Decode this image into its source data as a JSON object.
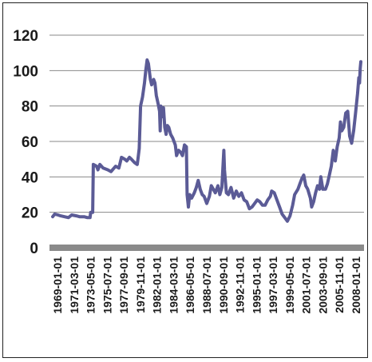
{
  "chart_data": {
    "type": "line",
    "title": "",
    "xlabel": "",
    "ylabel": "",
    "ylim": [
      0,
      120
    ],
    "y_ticks": [
      0,
      20,
      40,
      60,
      80,
      100,
      120
    ],
    "grid": true,
    "legend": "none",
    "x_tick_labels": [
      "1969-01-01",
      "1971-03-01",
      "1973-05-01",
      "1975-07-01",
      "1977-09-01",
      "1979-11-01",
      "1982-01-01",
      "1984-03-01",
      "1986-05-01",
      "1988-07-01",
      "1990-09-01",
      "1992-11-01",
      "1995-01-01",
      "1997-03-01",
      "1999-05-01",
      "2001-07-01",
      "2003-09-01",
      "2005-11-01",
      "2008-01-01"
    ],
    "series": [
      {
        "color": "#5b5b96",
        "points": [
          [
            "1969-01-01",
            17.5
          ],
          [
            "1969-04-01",
            19
          ],
          [
            "1969-09-01",
            18.5
          ],
          [
            "1970-01-01",
            18
          ],
          [
            "1970-07-01",
            17.5
          ],
          [
            "1971-01-01",
            17
          ],
          [
            "1971-06-01",
            18.5
          ],
          [
            "1972-01-01",
            18
          ],
          [
            "1972-06-01",
            17.5
          ],
          [
            "1973-01-01",
            17.5
          ],
          [
            "1973-06-01",
            17
          ],
          [
            "1973-10-01",
            17
          ],
          [
            "1973-11-01",
            20
          ],
          [
            "1974-02-01",
            20
          ],
          [
            "1974-03-01",
            47
          ],
          [
            "1974-08-01",
            46
          ],
          [
            "1974-10-01",
            44
          ],
          [
            "1975-01-01",
            47
          ],
          [
            "1975-06-01",
            45
          ],
          [
            "1976-01-01",
            44
          ],
          [
            "1976-06-01",
            43
          ],
          [
            "1977-01-01",
            46
          ],
          [
            "1977-06-01",
            45
          ],
          [
            "1977-10-01",
            51
          ],
          [
            "1978-03-01",
            50
          ],
          [
            "1978-06-01",
            49
          ],
          [
            "1978-10-01",
            51
          ],
          [
            "1979-01-01",
            50
          ],
          [
            "1979-06-01",
            48
          ],
          [
            "1979-10-01",
            47
          ],
          [
            "1979-11-01",
            50
          ],
          [
            "1980-01-01",
            56
          ],
          [
            "1980-03-01",
            80
          ],
          [
            "1980-06-01",
            85
          ],
          [
            "1980-09-01",
            93
          ],
          [
            "1980-11-01",
            100
          ],
          [
            "1981-01-01",
            106
          ],
          [
            "1981-03-01",
            104
          ],
          [
            "1981-06-01",
            95
          ],
          [
            "1981-08-01",
            92
          ],
          [
            "1981-11-01",
            95
          ],
          [
            "1982-01-01",
            93
          ],
          [
            "1982-03-01",
            86
          ],
          [
            "1982-06-01",
            81
          ],
          [
            "1982-08-01",
            77
          ],
          [
            "1982-09-01",
            66
          ],
          [
            "1982-10-01",
            80
          ],
          [
            "1982-12-01",
            74
          ],
          [
            "1983-02-01",
            79
          ],
          [
            "1983-04-01",
            68
          ],
          [
            "1983-06-01",
            64
          ],
          [
            "1983-08-01",
            69
          ],
          [
            "1983-10-01",
            68
          ],
          [
            "1984-01-01",
            64
          ],
          [
            "1984-04-01",
            62
          ],
          [
            "1984-08-01",
            58
          ],
          [
            "1984-10-01",
            52
          ],
          [
            "1985-01-01",
            55
          ],
          [
            "1985-04-01",
            54
          ],
          [
            "1985-07-01",
            52
          ],
          [
            "1985-10-01",
            58
          ],
          [
            "1986-01-01",
            57
          ],
          [
            "1986-02-01",
            30
          ],
          [
            "1986-04-01",
            23
          ],
          [
            "1986-06-01",
            30
          ],
          [
            "1986-09-01",
            28
          ],
          [
            "1987-01-01",
            31
          ],
          [
            "1987-04-01",
            34
          ],
          [
            "1987-07-01",
            38
          ],
          [
            "1987-10-01",
            33
          ],
          [
            "1988-01-01",
            30
          ],
          [
            "1988-04-01",
            29
          ],
          [
            "1988-08-01",
            25
          ],
          [
            "1988-12-01",
            29
          ],
          [
            "1989-03-01",
            35
          ],
          [
            "1989-06-01",
            33
          ],
          [
            "1989-09-01",
            31
          ],
          [
            "1990-01-01",
            35
          ],
          [
            "1990-04-01",
            30
          ],
          [
            "1990-07-01",
            34
          ],
          [
            "1990-10-01",
            55
          ],
          [
            "1990-11-01",
            44
          ],
          [
            "1991-02-01",
            31
          ],
          [
            "1991-05-01",
            30
          ],
          [
            "1991-09-01",
            34
          ],
          [
            "1992-01-01",
            28
          ],
          [
            "1992-05-01",
            32
          ],
          [
            "1992-09-01",
            29
          ],
          [
            "1993-01-01",
            31
          ],
          [
            "1993-05-01",
            27
          ],
          [
            "1993-09-01",
            26
          ],
          [
            "1994-01-01",
            22
          ],
          [
            "1994-05-01",
            23
          ],
          [
            "1994-09-01",
            25
          ],
          [
            "1995-01-01",
            27
          ],
          [
            "1995-05-01",
            26
          ],
          [
            "1995-09-01",
            24
          ],
          [
            "1996-01-01",
            24
          ],
          [
            "1996-05-01",
            27
          ],
          [
            "1996-09-01",
            29
          ],
          [
            "1996-11-01",
            32
          ],
          [
            "1997-03-01",
            31
          ],
          [
            "1997-07-01",
            27
          ],
          [
            "1997-11-01",
            23
          ],
          [
            "1998-03-01",
            19
          ],
          [
            "1998-07-01",
            17
          ],
          [
            "1998-11-01",
            15
          ],
          [
            "1999-03-01",
            18
          ],
          [
            "1999-07-01",
            24
          ],
          [
            "1999-10-01",
            30
          ],
          [
            "2000-03-01",
            33
          ],
          [
            "2000-06-01",
            36
          ],
          [
            "2000-09-01",
            39
          ],
          [
            "2000-12-01",
            41
          ],
          [
            "2001-03-01",
            35
          ],
          [
            "2001-06-01",
            33
          ],
          [
            "2001-10-01",
            28
          ],
          [
            "2001-12-01",
            23
          ],
          [
            "2002-03-01",
            26
          ],
          [
            "2002-06-01",
            31
          ],
          [
            "2002-09-01",
            35
          ],
          [
            "2002-12-01",
            33
          ],
          [
            "2003-02-01",
            40
          ],
          [
            "2003-05-01",
            33
          ],
          [
            "2003-09-01",
            33
          ],
          [
            "2003-12-01",
            36
          ],
          [
            "2004-03-01",
            41
          ],
          [
            "2004-06-01",
            46
          ],
          [
            "2004-09-01",
            55
          ],
          [
            "2004-12-01",
            49
          ],
          [
            "2005-03-01",
            57
          ],
          [
            "2005-06-01",
            62
          ],
          [
            "2005-08-01",
            71
          ],
          [
            "2005-10-01",
            66
          ],
          [
            "2006-01-01",
            68
          ],
          [
            "2006-04-01",
            76
          ],
          [
            "2006-07-01",
            77
          ],
          [
            "2006-10-01",
            63
          ],
          [
            "2007-01-01",
            59
          ],
          [
            "2007-04-01",
            66
          ],
          [
            "2007-07-01",
            76
          ],
          [
            "2007-10-01",
            87
          ],
          [
            "2007-12-01",
            96
          ],
          [
            "2008-01-01",
            93
          ],
          [
            "2008-02-01",
            101
          ],
          [
            "2008-03-01",
            105
          ]
        ]
      }
    ]
  }
}
